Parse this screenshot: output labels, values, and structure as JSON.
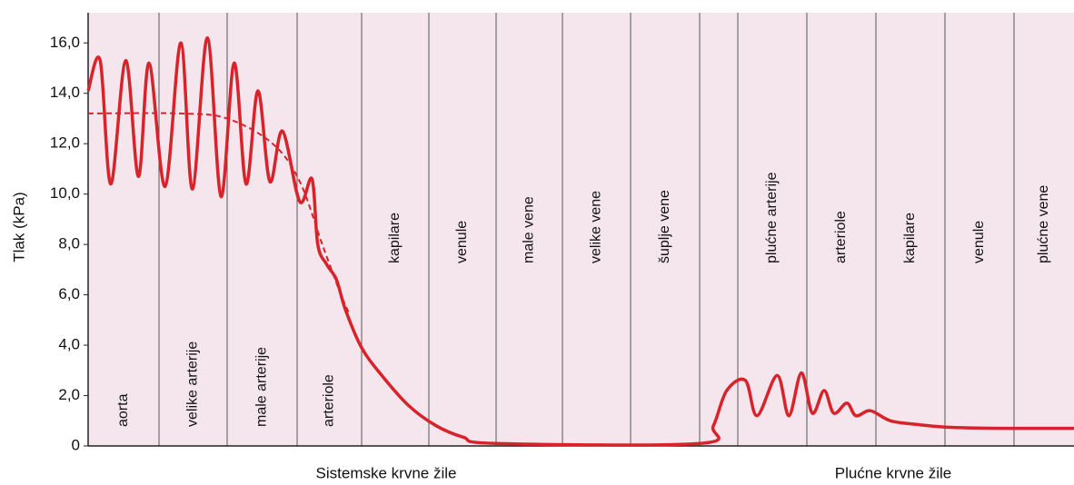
{
  "chart_data": {
    "type": "line",
    "ylabel": "Tlak (kPa)",
    "categories": [
      "aorta",
      "velike arterije",
      "male arterije",
      "arteriole",
      "kapilare",
      "venule",
      "male vene",
      "velike vene",
      "šuplje vene",
      null,
      "plućne arterije",
      "arteriole",
      "kapilare",
      "venule",
      "plućne vene"
    ],
    "groups": [
      "Sistemske krvne žile",
      "Plućne krvne žile"
    ],
    "ylim": [
      0,
      17.2
    ],
    "yticks": [
      0,
      {
        "value": 2,
        "label": "2,0"
      },
      {
        "value": 4,
        "label": "4,0"
      },
      {
        "value": 6,
        "label": "6,0"
      },
      {
        "value": 8,
        "label": "8,0"
      },
      {
        "value": 10,
        "label": "10,0"
      },
      {
        "value": 12,
        "label": "12,0"
      },
      {
        "value": 14,
        "label": "14,0"
      },
      {
        "value": 16,
        "label": "16,0"
      }
    ],
    "xlim": [
      0,
      15
    ],
    "series": [
      {
        "color": "#d8232a",
        "line_style": "solid",
        "x": [
          0,
          0.17,
          0.32,
          0.53,
          0.71,
          0.86,
          1.09,
          1.32,
          1.49,
          1.71,
          1.91,
          2.1,
          2.27,
          2.44,
          2.61,
          2.79,
          3.04,
          3.23,
          3.32,
          3.46,
          3.61,
          3.75,
          4.0,
          4.3,
          4.7,
          5.11,
          5.51,
          6.0,
          9.0,
          9.36,
          9.71,
          10.11,
          10.28,
          10.57,
          10.74,
          10.92,
          11.08,
          11.25,
          11.39,
          11.58,
          11.71,
          11.92,
          12.21,
          12.61,
          13.0,
          13.79,
          15
        ],
        "values": [
          14.1,
          15.3,
          10.4,
          15.3,
          10.7,
          15.2,
          10.3,
          16.0,
          10.2,
          16.2,
          9.9,
          15.2,
          10.4,
          14.1,
          10.5,
          12.5,
          9.7,
          10.6,
          8.0,
          7.2,
          6.6,
          5.4,
          3.9,
          2.8,
          1.6,
          0.8,
          0.35,
          0.1,
          0.1,
          0.8,
          2.2,
          2.6,
          1.2,
          2.8,
          1.2,
          2.9,
          1.3,
          2.2,
          1.3,
          1.7,
          1.2,
          1.4,
          1.0,
          0.85,
          0.75,
          0.7,
          0.7
        ]
      },
      {
        "color": "#d8232a",
        "line_style": "dashed",
        "x": [
          0,
          1.3,
          2.0,
          2.65,
          3.04,
          3.39,
          3.68,
          3.82
        ],
        "values": [
          13.2,
          13.2,
          13.0,
          12.0,
          10.5,
          8.0,
          6.0,
          5.2
        ]
      }
    ]
  }
}
